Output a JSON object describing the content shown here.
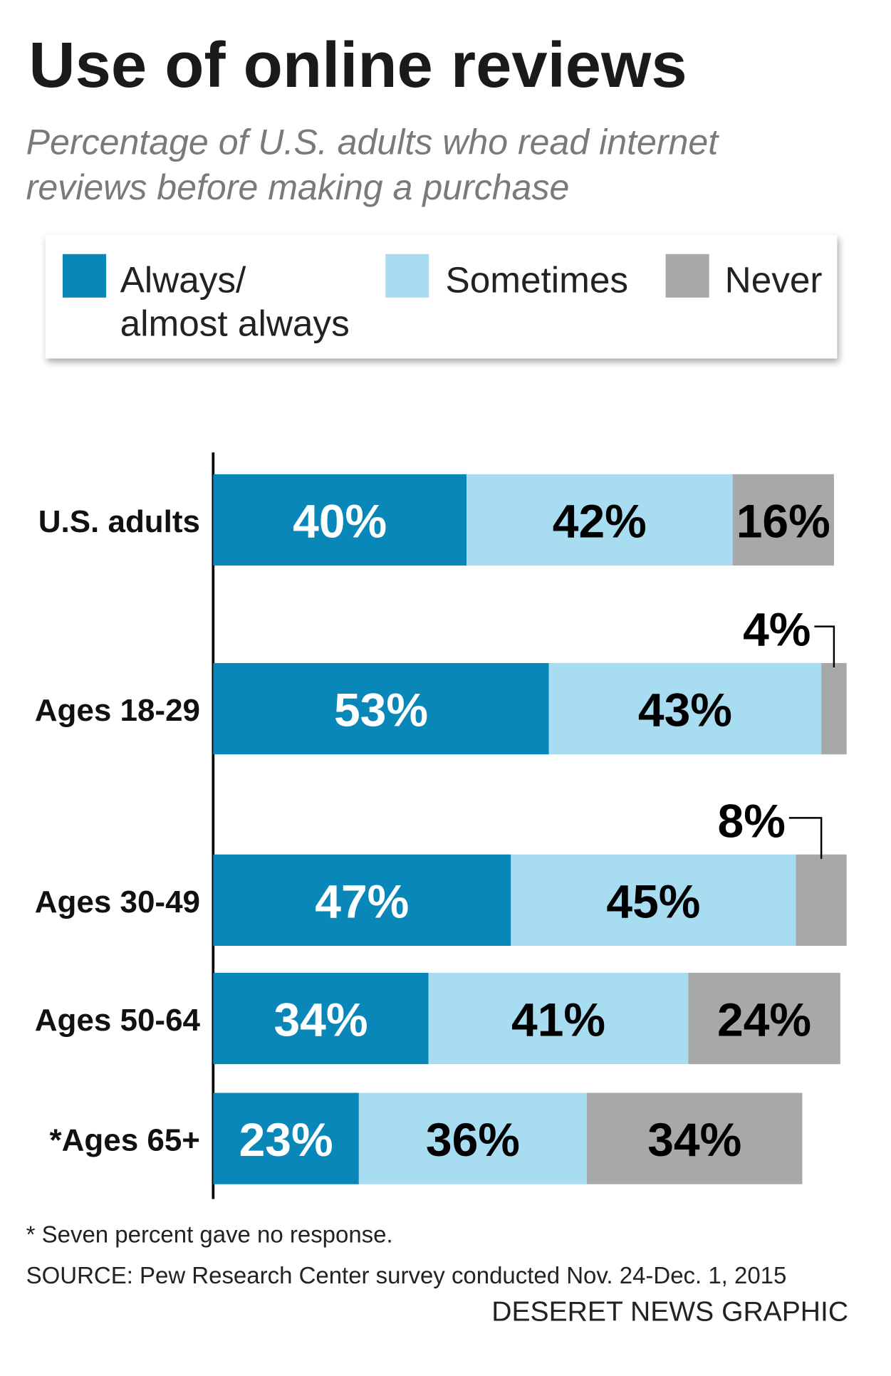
{
  "chart_data": {
    "type": "stacked-bar",
    "title": "Use of online reviews",
    "subtitle": "Percentage of U.S. adults who read internet\nreviews before making a purchase",
    "categories": [
      "U.S. adults",
      "Ages 18-29",
      "Ages 30-49",
      "Ages 50-64",
      "*Ages 65+"
    ],
    "xlim": [
      0,
      100
    ],
    "series": [
      {
        "name": "Always/\nalmost always",
        "color": "#0a87b9",
        "label_color": "#ffffff",
        "values": [
          40,
          53,
          47,
          34,
          23
        ],
        "value_labels": [
          "40%",
          "53%",
          "47%",
          "34%",
          "23%"
        ]
      },
      {
        "name": "Sometimes",
        "color": "#a8dcf1",
        "label_color": "#000000",
        "values": [
          42,
          43,
          45,
          41,
          36
        ],
        "value_labels": [
          "42%",
          "43%",
          "45%",
          "41%",
          "36%"
        ]
      },
      {
        "name": "Never",
        "color": "#a7a8aa",
        "label_color": "#000000",
        "values": [
          16,
          4,
          8,
          24,
          34
        ],
        "value_labels": [
          "16%",
          "4%",
          "8%",
          "24%",
          "34%"
        ]
      }
    ],
    "note": "* Seven percent gave no response.",
    "source": "SOURCE: Pew Research Center  survey conducted Nov. 24-Dec. 1, 2015",
    "credit": "DESERET NEWS GRAPHIC"
  }
}
